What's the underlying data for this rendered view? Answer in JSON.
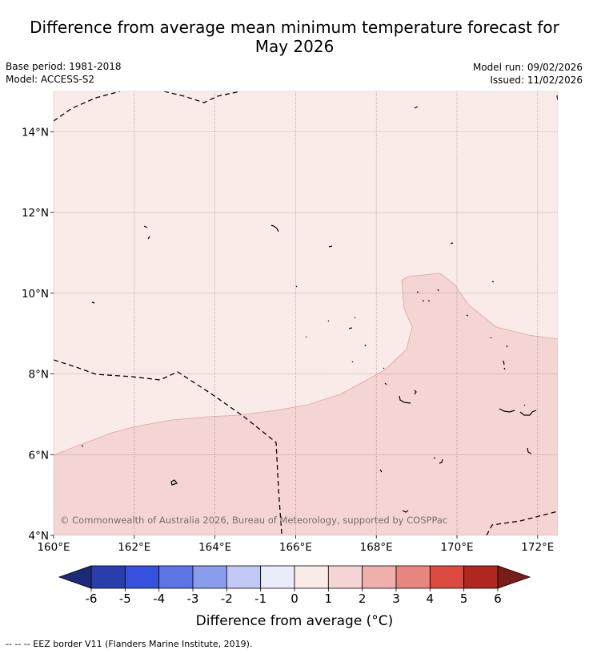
{
  "title": {
    "line1": "Difference from average mean minimum temperature forecast for",
    "line2": "May 2026"
  },
  "meta": {
    "base_period": "Base period: 1981-2018",
    "model": "Model: ACCESS-S2",
    "model_run": "Model run: 09/02/2026",
    "issued": "Issued: 11/02/2026"
  },
  "map": {
    "lon_range": [
      160,
      172.5
    ],
    "lat_range": [
      4,
      15
    ],
    "x_ticks": [
      {
        "value": 160,
        "label": "160°E"
      },
      {
        "value": 162,
        "label": "162°E"
      },
      {
        "value": 164,
        "label": "164°E"
      },
      {
        "value": 166,
        "label": "166°E"
      },
      {
        "value": 168,
        "label": "168°E"
      },
      {
        "value": 170,
        "label": "170°E"
      },
      {
        "value": 172,
        "label": "172°E"
      }
    ],
    "y_ticks": [
      {
        "value": 4,
        "label": "4°N"
      },
      {
        "value": 6,
        "label": "6°N"
      },
      {
        "value": 8,
        "label": "8°N"
      },
      {
        "value": 10,
        "label": "10°N"
      },
      {
        "value": 12,
        "label": "12°N"
      },
      {
        "value": 14,
        "label": "14°N"
      }
    ],
    "gridlines": true,
    "fill_light": "#fbebe8",
    "fill_medium": "#f5d5d3",
    "copyright": "© Commonwealth of Australia 2026, Bureau of Meteorology, supported by COSPPac"
  },
  "colorbar": {
    "tick_labels": [
      "-6",
      "-5",
      "-4",
      "-3",
      "-2",
      "-1",
      "0",
      "1",
      "2",
      "3",
      "4",
      "5",
      "6"
    ],
    "colors": [
      "#283ead",
      "#3551de",
      "#5c74e4",
      "#8a9ded",
      "#c2c9f4",
      "#eaecfb",
      "#fbebe8",
      "#f5d5d3",
      "#efb0ac",
      "#e88680",
      "#dd4a40",
      "#b1261f"
    ],
    "extend_low_color": "#1b2b7a",
    "extend_high_color": "#7a1c18",
    "label": "Difference from average ($^\\circ$C)",
    "label_display": "Difference from average (°C)"
  },
  "footnote": "-- -- -- EEZ border V11 (Flanders Marine Institute, 2019)."
}
